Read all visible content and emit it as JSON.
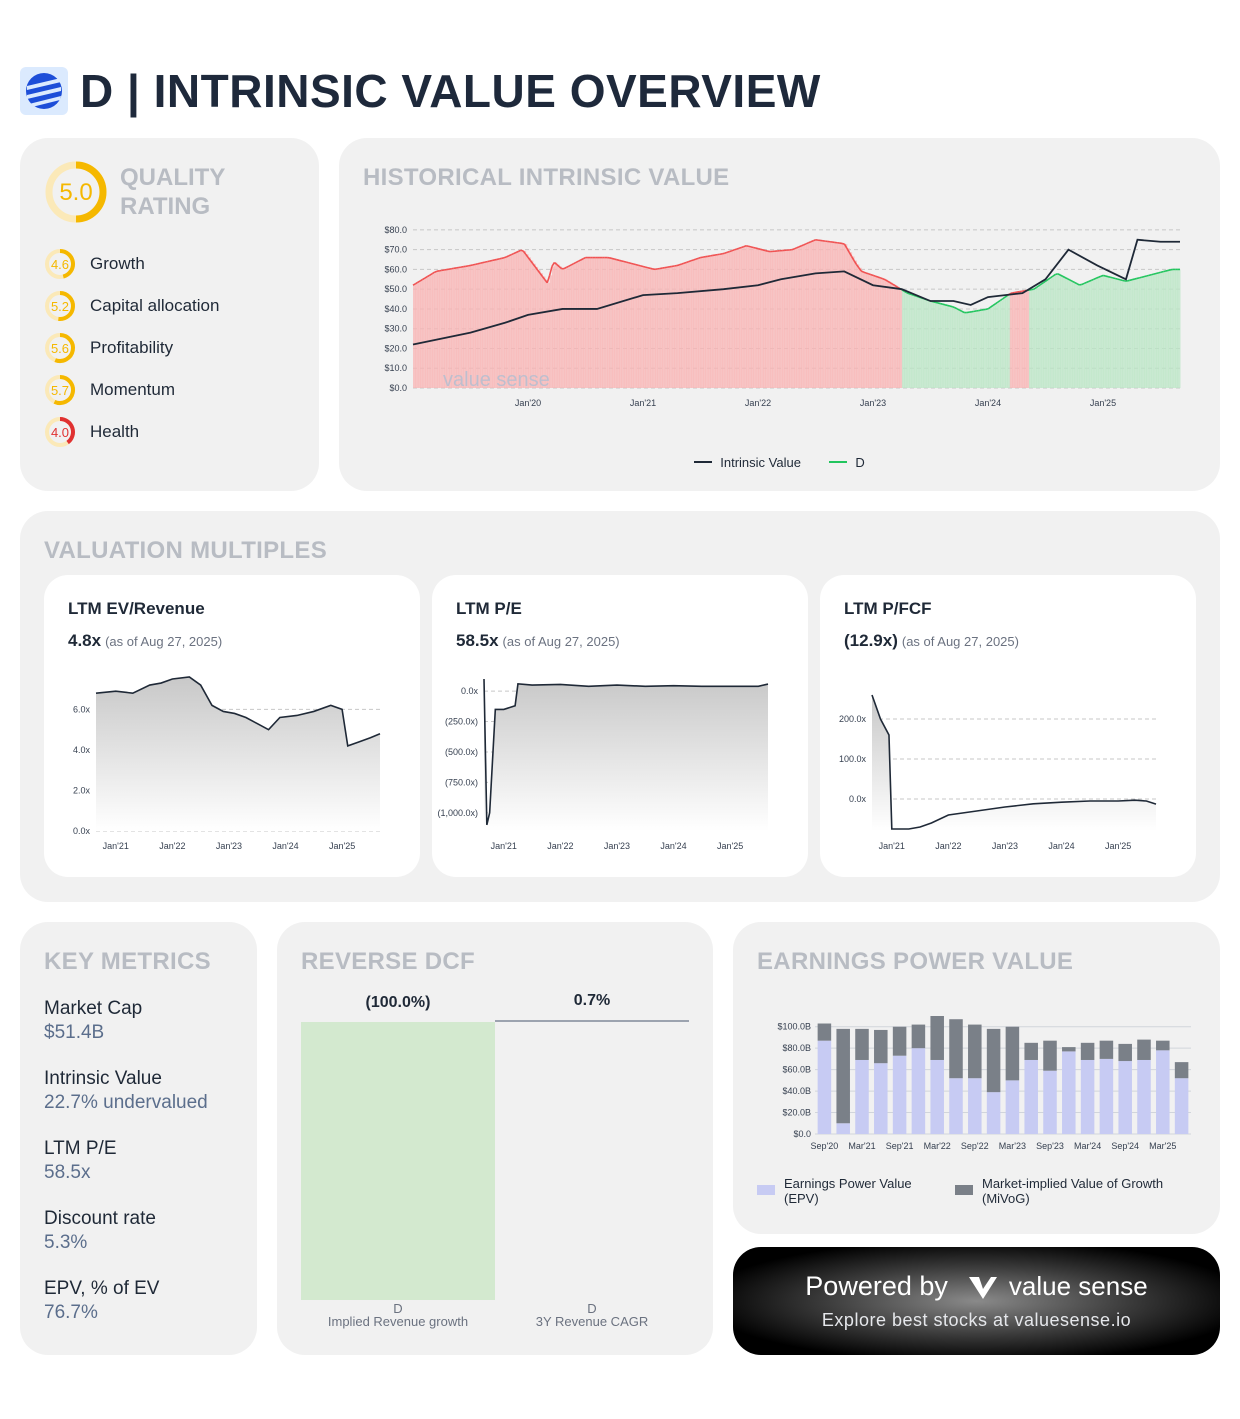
{
  "header": {
    "title": "D | INTRINSIC VALUE OVERVIEW"
  },
  "quality": {
    "title": "QUALITY RATING",
    "score": "5.0",
    "score_value": 5.0,
    "items": [
      {
        "label": "Growth",
        "score": "4.6",
        "value": 4.6,
        "color": "#f5b800"
      },
      {
        "label": "Capital allocation",
        "score": "5.2",
        "value": 5.2,
        "color": "#f5b800"
      },
      {
        "label": "Profitability",
        "score": "5.6",
        "value": 5.6,
        "color": "#f5b800"
      },
      {
        "label": "Momentum",
        "score": "5.7",
        "value": 5.7,
        "color": "#f5b800"
      },
      {
        "label": "Health",
        "score": "4.0",
        "value": 4.0,
        "color": "#e03131"
      }
    ]
  },
  "historical": {
    "title": "HISTORICAL INTRINSIC VALUE",
    "watermark": "value sense",
    "legend": [
      "Intrinsic Value",
      "D"
    ]
  },
  "multiples": {
    "title": "VALUATION MULTIPLES",
    "cards": [
      {
        "title": "LTM EV/Revenue",
        "value": "4.8x",
        "asof": "(as of Aug 27, 2025)"
      },
      {
        "title": "LTM P/E",
        "value": "58.5x",
        "asof": "(as of Aug 27, 2025)"
      },
      {
        "title": "LTM P/FCF",
        "value": "(12.9x)",
        "asof": "(as of Aug 27, 2025)"
      }
    ]
  },
  "key_metrics": {
    "title": "KEY METRICS",
    "items": [
      {
        "label": "Market Cap",
        "value": "$51.4B"
      },
      {
        "label": "Intrinsic Value",
        "value": "22.7% undervalued"
      },
      {
        "label": "LTM P/E",
        "value": "58.5x"
      },
      {
        "label": "Discount rate",
        "value": "5.3%"
      },
      {
        "label": "EPV, % of EV",
        "value": "76.7%"
      }
    ]
  },
  "reverse_dcf": {
    "title": "REVERSE DCF",
    "bars": [
      {
        "label": "(100.0%)",
        "ticker": "D",
        "name": "Implied Revenue growth"
      },
      {
        "label": "0.7%",
        "ticker": "D",
        "name": "3Y Revenue CAGR"
      }
    ]
  },
  "epv": {
    "title": "EARNINGS POWER VALUE",
    "legend": [
      "Earnings Power Value (EPV)",
      "Market-implied Value of Growth (MiVoG)"
    ]
  },
  "powered": {
    "text": "Powered by",
    "brand": "value sense",
    "sub": "Explore best stocks at valuesense.io"
  },
  "colors": {
    "red": "#f05252",
    "green": "#22c55e",
    "dark": "#1f2937",
    "epv": "#c7cbf3",
    "mivog": "#7a8088",
    "rdcf_bar": "#d3e9cf"
  },
  "chart_data": [
    {
      "type": "line",
      "id": "historical",
      "title": "HISTORICAL INTRINSIC VALUE",
      "ylim": [
        0,
        85
      ],
      "yticks": [
        "$0.0",
        "$10.0",
        "$20.0",
        "$30.0",
        "$40.0",
        "$50.0",
        "$60.0",
        "$70.0",
        "$80.0"
      ],
      "xticks": [
        "Jan'20",
        "Jan'21",
        "Jan'22",
        "Jan'23",
        "Jan'24",
        "Jan'25"
      ],
      "xrange": [
        2019.0,
        2025.67
      ],
      "series": [
        {
          "name": "D",
          "x": [
            2019.0,
            2019.2,
            2019.5,
            2019.8,
            2019.95,
            2020.17,
            2020.22,
            2020.3,
            2020.5,
            2020.7,
            2020.9,
            2021.1,
            2021.3,
            2021.5,
            2021.7,
            2021.9,
            2022.1,
            2022.3,
            2022.5,
            2022.75,
            2022.85,
            2022.9,
            2023.1,
            2023.3,
            2023.5,
            2023.7,
            2023.8,
            2024.0,
            2024.2,
            2024.4,
            2024.6,
            2024.8,
            2025.0,
            2025.2,
            2025.4,
            2025.6,
            2025.67
          ],
          "values": [
            52,
            59,
            62,
            66,
            70,
            53,
            64,
            60,
            66,
            66,
            63,
            60,
            62,
            66,
            68,
            72,
            69,
            70,
            75,
            73,
            63,
            59,
            55,
            48,
            44,
            41,
            38,
            40,
            48,
            50,
            58,
            52,
            57,
            54,
            57,
            60,
            60
          ]
        },
        {
          "name": "Intrinsic Value",
          "x": [
            2019.0,
            2019.5,
            2019.8,
            2020.0,
            2020.3,
            2020.6,
            2021.0,
            2021.3,
            2021.7,
            2022.0,
            2022.2,
            2022.5,
            2022.75,
            2023.0,
            2023.25,
            2023.5,
            2023.7,
            2023.85,
            2024.0,
            2024.3,
            2024.5,
            2024.7,
            2024.95,
            2025.2,
            2025.3,
            2025.5,
            2025.67
          ],
          "values": [
            22,
            28,
            33,
            37,
            40,
            40,
            47,
            48,
            50,
            52,
            55,
            58,
            59,
            52,
            50,
            44,
            44,
            42,
            46,
            48,
            55,
            70,
            62,
            55,
            75,
            74,
            74
          ]
        }
      ]
    },
    {
      "type": "line",
      "id": "ev_revenue",
      "title": "LTM EV/Revenue",
      "ylim": [
        0,
        7.5
      ],
      "yticks": [
        "0.0x",
        "2.0x",
        "4.0x",
        "6.0x"
      ],
      "xticks": [
        "Jan'21",
        "Jan'22",
        "Jan'23",
        "Jan'24",
        "Jan'25"
      ],
      "xrange": [
        2020.65,
        2025.67
      ],
      "series": [
        {
          "name": "EV/Revenue",
          "x": [
            2020.65,
            2021.0,
            2021.3,
            2021.6,
            2021.8,
            2022.0,
            2022.3,
            2022.5,
            2022.7,
            2022.9,
            2023.1,
            2023.3,
            2023.5,
            2023.7,
            2023.9,
            2024.2,
            2024.5,
            2024.8,
            2025.0,
            2025.1,
            2025.3,
            2025.5,
            2025.67
          ],
          "values": [
            6.8,
            6.9,
            6.8,
            7.2,
            7.3,
            7.5,
            7.6,
            7.2,
            6.2,
            5.9,
            5.8,
            5.6,
            5.3,
            5.0,
            5.6,
            5.7,
            5.9,
            6.2,
            6.0,
            4.2,
            4.4,
            4.6,
            4.8
          ]
        }
      ]
    },
    {
      "type": "line",
      "id": "pe",
      "title": "LTM P/E",
      "ylim": [
        -1150,
        100
      ],
      "yticks": [
        "(1,000.0x)",
        "(750.0x)",
        "(500.0x)",
        "(250.0x)",
        "0.0x"
      ],
      "xticks": [
        "Jan'21",
        "Jan'22",
        "Jan'23",
        "Jan'24",
        "Jan'25"
      ],
      "xrange": [
        2020.65,
        2025.67
      ],
      "series": [
        {
          "name": "P/E",
          "x": [
            2020.65,
            2020.7,
            2020.75,
            2020.85,
            2020.9,
            2021.0,
            2021.2,
            2021.25,
            2021.5,
            2022.0,
            2022.5,
            2023.0,
            2023.5,
            2024.0,
            2024.5,
            2025.0,
            2025.5,
            2025.67
          ],
          "values": [
            100,
            -1100,
            -1000,
            -150,
            -150,
            -150,
            -120,
            60,
            50,
            55,
            40,
            50,
            40,
            45,
            40,
            40,
            40,
            58.5
          ]
        }
      ]
    },
    {
      "type": "line",
      "id": "pfcf",
      "title": "LTM P/FCF",
      "ylim": [
        -80,
        300
      ],
      "yticks": [
        "0.0x",
        "100.0x",
        "200.0x"
      ],
      "xticks": [
        "Jan'21",
        "Jan'22",
        "Jan'23",
        "Jan'24",
        "Jan'25"
      ],
      "xrange": [
        2020.65,
        2025.67
      ],
      "series": [
        {
          "name": "P/FCF",
          "x": [
            2020.65,
            2020.7,
            2020.8,
            2020.95,
            2021.0,
            2021.3,
            2021.5,
            2021.7,
            2022.0,
            2022.5,
            2023.0,
            2023.5,
            2024.0,
            2024.5,
            2025.0,
            2025.3,
            2025.5,
            2025.67
          ],
          "values": [
            260,
            240,
            200,
            160,
            -75,
            -75,
            -70,
            -60,
            -40,
            -30,
            -20,
            -12,
            -8,
            -5,
            -5,
            -3,
            -5,
            -12.9
          ]
        }
      ]
    },
    {
      "type": "bar",
      "id": "epv",
      "title": "EARNINGS POWER VALUE",
      "stacked": true,
      "ylim": [
        0,
        110
      ],
      "yticks": [
        "$0.0",
        "$20.0B",
        "$40.0B",
        "$60.0B",
        "$80.0B",
        "$100.0B"
      ],
      "categories": [
        "Sep'20",
        "Dec'20",
        "Mar'21",
        "Jun'21",
        "Sep'21",
        "Dec'21",
        "Mar'22",
        "Jun'22",
        "Sep'22",
        "Dec'22",
        "Mar'23",
        "Jun'23",
        "Sep'23",
        "Dec'23",
        "Mar'24",
        "Jun'24",
        "Sep'24",
        "Dec'24",
        "Mar'25",
        "Jun'25"
      ],
      "xtick_labels": [
        "Sep'20",
        "Mar'21",
        "Sep'21",
        "Mar'22",
        "Sep'22",
        "Mar'23",
        "Sep'23",
        "Mar'24",
        "Sep'24",
        "Mar'25"
      ],
      "series": [
        {
          "name": "Earnings Power Value (EPV)",
          "values": [
            87,
            10,
            69,
            66,
            73,
            80,
            69,
            52,
            52,
            39,
            50,
            69,
            59,
            77,
            69,
            70,
            68,
            69,
            78,
            52
          ]
        },
        {
          "name": "Market-implied Value of Growth (MiVoG)",
          "values": [
            16,
            88,
            29,
            31,
            27,
            22,
            41,
            55,
            50,
            59,
            50,
            16,
            28,
            4,
            16,
            17,
            16,
            19,
            9,
            15
          ]
        }
      ]
    }
  ]
}
